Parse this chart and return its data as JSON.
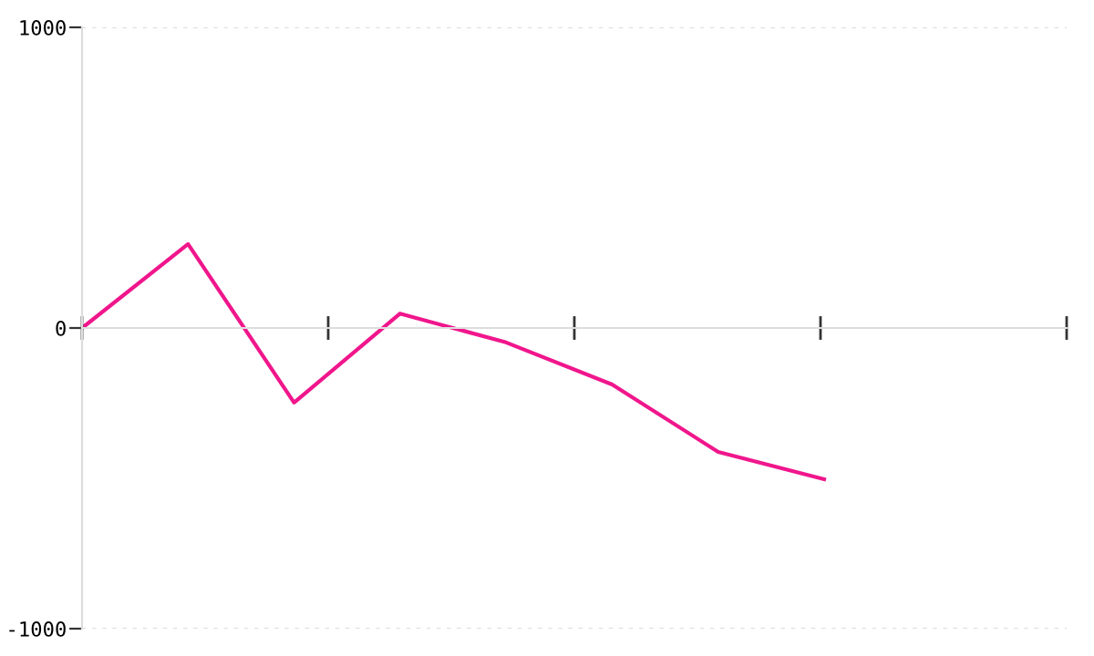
{
  "chart_data": {
    "type": "line",
    "categories": [
      null,
      null,
      null,
      null,
      null,
      null,
      null,
      null
    ],
    "series": [
      {
        "color": "#f0168c",
        "values": [
          0,
          279,
          -248,
          48,
          -48,
          -188,
          -412,
          -503
        ]
      }
    ],
    "ylim": [
      -1000,
      1000
    ],
    "yticks": [
      {
        "value": -1000,
        "label": "-1000"
      },
      0,
      1000
    ],
    "grid": "y",
    "marker": "none",
    "line_style": "solid",
    "legend": false,
    "tick_labels": "y"
  }
}
